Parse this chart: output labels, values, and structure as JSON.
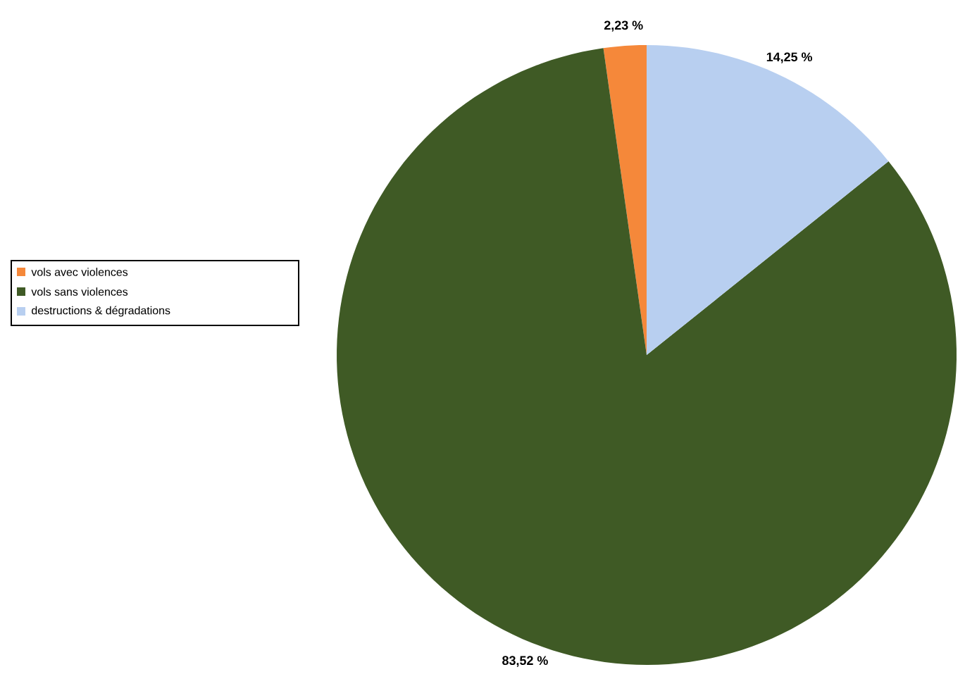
{
  "chart_data": {
    "type": "pie",
    "categories": [
      "vols avec violences",
      "vols sans violences",
      "destructions & dégradations"
    ],
    "values": [
      2.23,
      83.52,
      14.25
    ],
    "colors": [
      "#f5883a",
      "#3f5a25",
      "#b8cff0"
    ],
    "value_labels": [
      "2,23 %",
      "83,52 %",
      "14,25 %"
    ],
    "legend": "left"
  }
}
